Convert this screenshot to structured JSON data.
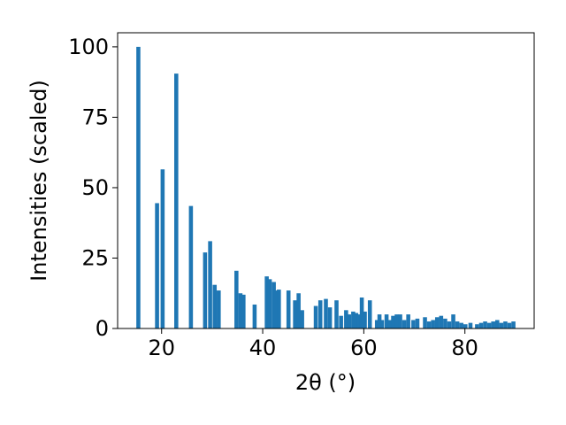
{
  "chart_data": {
    "type": "bar",
    "xlabel": "2θ (°)",
    "ylabel": "Intensities (scaled)",
    "xlim": [
      11.3,
      93.7
    ],
    "ylim": [
      0,
      105
    ],
    "xticks": [
      20,
      40,
      60,
      80
    ],
    "yticks": [
      0,
      25,
      50,
      75,
      100
    ],
    "bar_color": "#1f77b4",
    "bar_width": 0.8,
    "x": [
      15.4,
      19.1,
      20.2,
      22.9,
      25.8,
      28.6,
      29.6,
      30.5,
      31.3,
      34.8,
      35.6,
      36.2,
      38.4,
      40.8,
      41.4,
      42.2,
      42.6,
      43.2,
      45.1,
      46.4,
      47.1,
      47.8,
      50.5,
      51.4,
      52.5,
      53.3,
      54.6,
      55.5,
      56.5,
      57.1,
      57.9,
      58.5,
      59.1,
      59.6,
      60.2,
      61.2,
      62.6,
      63.1,
      63.6,
      64.5,
      65.1,
      65.8,
      66.5,
      67.2,
      68.0,
      68.8,
      69.8,
      70.6,
      72.1,
      72.9,
      73.7,
      74.5,
      75.3,
      76.1,
      76.9,
      77.7,
      78.5,
      79.3,
      80.1,
      81.1,
      82.4,
      83.2,
      84.0,
      84.8,
      85.6,
      86.4,
      87.2,
      88.0,
      88.8,
      89.6
    ],
    "values": [
      100,
      44.5,
      56.5,
      90.5,
      43.5,
      27,
      31,
      15.5,
      13.5,
      20.5,
      12.5,
      12,
      8.5,
      18.5,
      17.5,
      16.5,
      13.5,
      13.8,
      13.5,
      10,
      12.5,
      6.5,
      8,
      10,
      10.5,
      7.5,
      10,
      4.5,
      6.5,
      5,
      6,
      5.5,
      5,
      11,
      6,
      10,
      3,
      5,
      3,
      5,
      3,
      4.5,
      5,
      5,
      3,
      5,
      3,
      3.5,
      4,
      2.5,
      3,
      4,
      4.5,
      3.5,
      2.5,
      5,
      2.5,
      2,
      1.5,
      2,
      1.5,
      2,
      2.5,
      2,
      2.5,
      3,
      2,
      2.5,
      2,
      2.5
    ]
  }
}
